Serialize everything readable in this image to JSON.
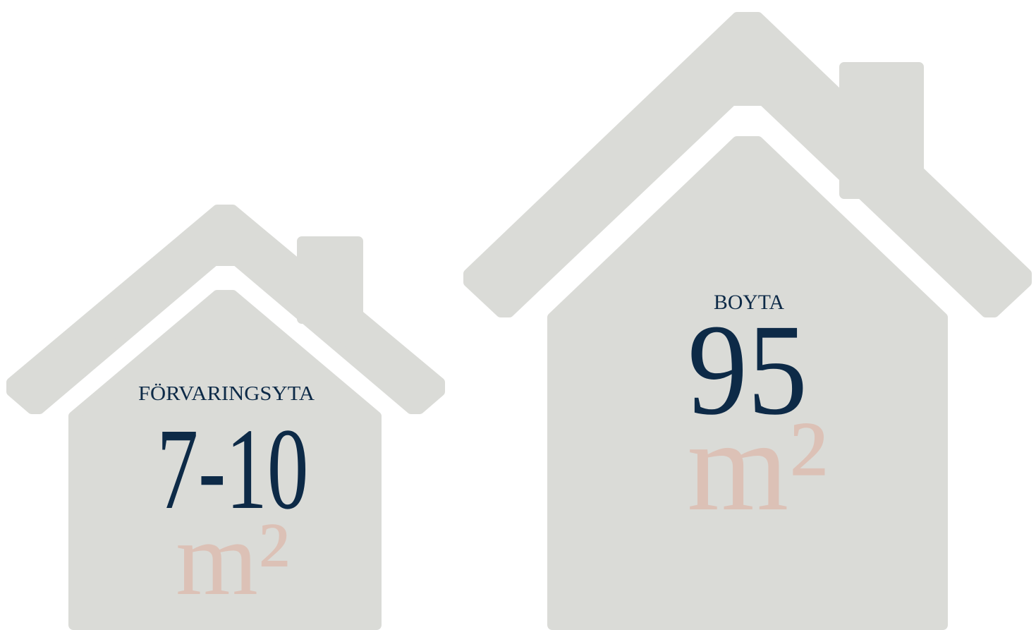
{
  "houses": [
    {
      "label": "FÖRVARINGSYTA",
      "value": "7-10",
      "unit": "m²"
    },
    {
      "label": "BOYTA",
      "value": "95",
      "unit": "m²"
    }
  ]
}
